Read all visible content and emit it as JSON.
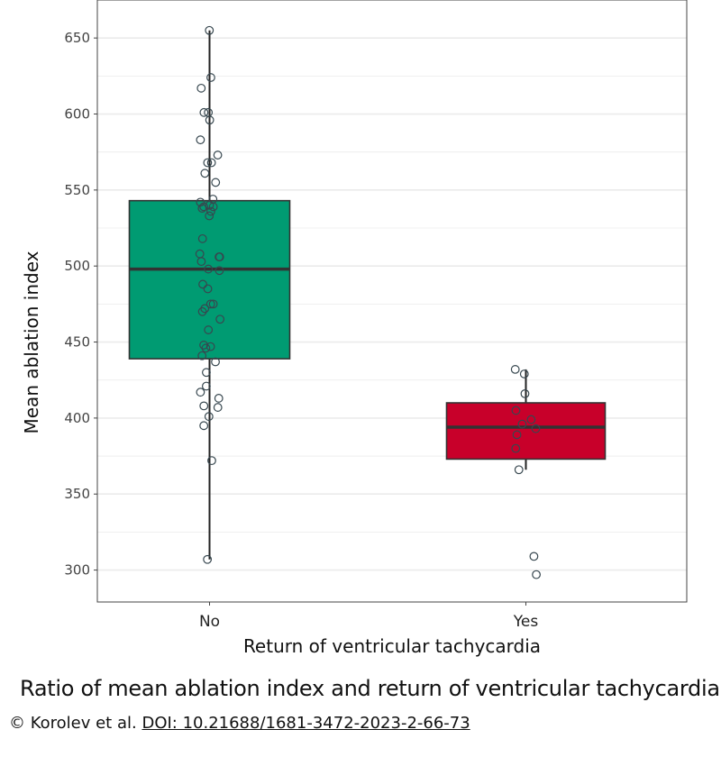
{
  "chart_data": {
    "type": "boxplot",
    "xlabel": "Return of ventricular tachycardia",
    "ylabel": "Mean ablation index",
    "categories": [
      "No",
      "Yes"
    ],
    "ylim": [
      279,
      675
    ],
    "yticks": [
      300,
      350,
      400,
      450,
      500,
      550,
      600,
      650
    ],
    "grid": true,
    "series": [
      {
        "category": "No",
        "color": "#009B72",
        "box": {
          "whisker_low": 307,
          "q1": 439,
          "median": 498,
          "q3": 543,
          "whisker_high": 655
        },
        "points": [
          655,
          624,
          617,
          601,
          601,
          596,
          583,
          573,
          568,
          568,
          561,
          555,
          544,
          542,
          540,
          539,
          539,
          538,
          536,
          533,
          518,
          508,
          506,
          506,
          503,
          498,
          497,
          488,
          485,
          475,
          475,
          472,
          470,
          465,
          458,
          448,
          447,
          446,
          441,
          437,
          430,
          421,
          417,
          413,
          408,
          407,
          401,
          395,
          372,
          307
        ]
      },
      {
        "category": "Yes",
        "color": "#C8002A",
        "box": {
          "whisker_low": 366,
          "q1": 373,
          "median": 394,
          "q3": 410,
          "whisker_high": 432
        },
        "points": [
          432,
          429,
          416,
          405,
          399,
          396,
          393,
          389,
          380,
          366,
          309,
          297
        ]
      }
    ]
  },
  "caption": "Ratio of mean ablation index and return of ventricular tachycardia",
  "credit": {
    "authors": "© Korolev et al.",
    "doi": "DOI: 10.21688/1681-3472-2023-2-66-73"
  }
}
